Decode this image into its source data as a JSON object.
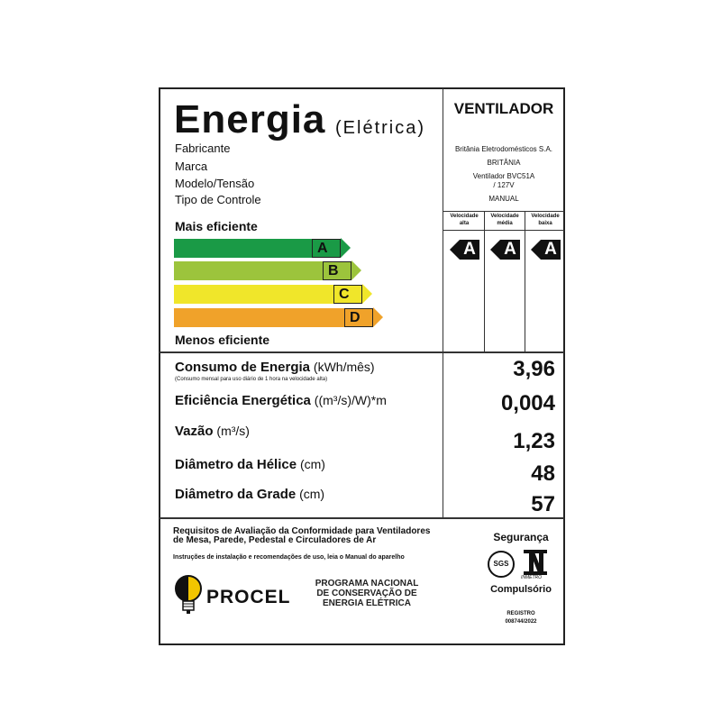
{
  "header": {
    "title": "Energia",
    "subtitle": "(Elétrica)",
    "product_type": "VENTILADOR"
  },
  "fields": [
    {
      "label": "Fabricante",
      "value": "Britânia Eletrodomésticos S.A."
    },
    {
      "label": "Marca",
      "value": "BRITÂNIA"
    },
    {
      "label": "Modelo/Tensão",
      "value": "Ventilador BVC51A",
      "value2": "/ 127V"
    },
    {
      "label": "Tipo de Controle",
      "value": "MANUAL"
    }
  ],
  "scale": {
    "top_label": "Mais eficiente",
    "bottom_label": "Menos eficiente",
    "classes": [
      {
        "letter": "A",
        "color": "#1a9a46"
      },
      {
        "letter": "B",
        "color": "#9cc43c"
      },
      {
        "letter": "C",
        "color": "#f0e62a"
      },
      {
        "letter": "D",
        "color": "#f0a22a"
      }
    ]
  },
  "speeds": [
    {
      "line1": "Velocidade",
      "line2": "alta",
      "grade": "A"
    },
    {
      "line1": "Velocidade",
      "line2": "média",
      "grade": "A"
    },
    {
      "line1": "Velocidade",
      "line2": "baixa",
      "grade": "A"
    }
  ],
  "metrics": [
    {
      "name": "Consumo de Energia",
      "unit": "(kWh/mês)",
      "note": "(Consumo mensal para uso diário de 1 hora na velocidade alta)",
      "value": "3,96"
    },
    {
      "name": "Eficiência Energética",
      "unit": "((m³/s)/W)*m",
      "value": "0,004"
    },
    {
      "name": "Vazão",
      "unit": "(m³/s)",
      "value": "1,23"
    },
    {
      "name": "Diâmetro da Hélice",
      "unit": "(cm)",
      "value": "48"
    },
    {
      "name": "Diâmetro da Grade",
      "unit": "(cm)",
      "value": "57"
    }
  ],
  "footer": {
    "requirements": "Requisitos de Avaliação da Conformidade para Ventiladores",
    "requirements2": "de Mesa, Parede, Pedestal e Circuladores de Ar",
    "instructions": "Instruções de instalação e recomendações de uso, leia o Manual do aparelho",
    "procel": "PROCEL",
    "program1": "PROGRAMA NACIONAL",
    "program2": "DE CONSERVAÇÃO DE",
    "program3": "ENERGIA ELÉTRICA",
    "security": "Segurança",
    "sgs": "SGS",
    "inmetro": "INMETRO",
    "compulsory": "Compulsório",
    "registry_label": "REGISTRO",
    "registry_number": "008744/2022"
  }
}
